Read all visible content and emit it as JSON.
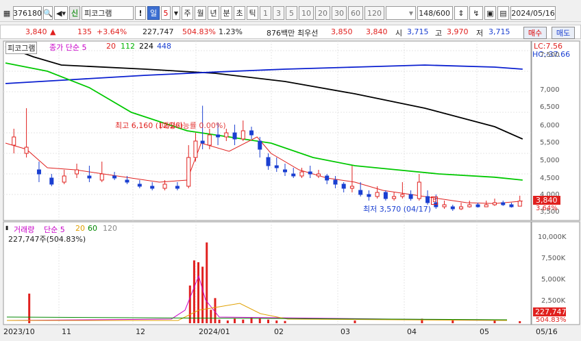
{
  "toolbar": {
    "code": "376180",
    "search_icon": "search-icon",
    "sound_icon": "speaker-icon",
    "stock_badge": "신",
    "stock_name": "피코그램",
    "alert": "!",
    "period_selected": "일",
    "period_count": "5",
    "periods": [
      "주",
      "월",
      "년",
      "분",
      "초",
      "틱"
    ],
    "intervals": [
      "1",
      "3",
      "5",
      "10",
      "20",
      "30",
      "60",
      "120"
    ],
    "count_display": "148/600",
    "date": "2024/05/16"
  },
  "quote": {
    "price": "3,840",
    "arrow": "▲",
    "change": "135",
    "change_pct": "+3.64%",
    "volume": "227,747",
    "volume_pct": "504.83%",
    "turnover": "1.23%",
    "amount": "876백만",
    "broker": "최우선",
    "ask": "3,850",
    "bid": "3,840",
    "open_label": "시",
    "open": "3,715",
    "high_label": "고",
    "high": "3,970",
    "low_label": "저",
    "low": "3,715",
    "buy_button": "매수",
    "sell_button": "매도"
  },
  "price_panel": {
    "name_label": "피코그램",
    "ma_title": "종가 단순 5",
    "ma_periods": [
      "20",
      "112",
      "224",
      "448"
    ],
    "lc": "LC:7.56",
    "hc": "HC:-37.66",
    "y_ticks": [
      "7,500",
      "7,000",
      "6,500",
      "6,000",
      "5,500",
      "5,000",
      "4,500",
      "4,000",
      "3,500"
    ],
    "current_tag": "3,840",
    "current_pct": "3.64%",
    "high_note": "최고 6,160 (12/26)",
    "overlap_note": "(매칭가능률 0.00%)",
    "low_note": "최저 3,570 (04/17)",
    "b_marker": "B"
  },
  "volume_panel": {
    "title": "거래량",
    "ma_title": "단순 5",
    "ma_periods": [
      "20",
      "60",
      "120"
    ],
    "summary": "227,747주(504.83%)",
    "y_ticks": [
      "10,000K",
      "7,500K",
      "5,000K",
      "2,500K"
    ],
    "current_tag": "227,747",
    "current_pct": "504.83%"
  },
  "x_axis": [
    "2023/10",
    "11",
    "12",
    "2024/01",
    "02",
    "03",
    "04",
    "05",
    "05/16"
  ],
  "colors": {
    "up": "#e0201e",
    "down": "#1a3fd1",
    "ma5": "#e0201e",
    "ma20": "#00c800",
    "ma112": "#0a1fd0",
    "ma224": "#000000",
    "vol_ma5": "#c800c8",
    "vol_ma20": "#e0a000",
    "vol_ma60": "#008800",
    "vol_ma120": "#888888"
  },
  "chart_data": {
    "type": "candlestick",
    "ylim": [
      3400,
      7700
    ],
    "ma_long": [
      [
        0,
        7600
      ],
      [
        40,
        7350
      ],
      [
        80,
        7150
      ],
      [
        200,
        7050
      ],
      [
        300,
        6950
      ],
      [
        400,
        6750
      ],
      [
        500,
        6450
      ],
      [
        600,
        6100
      ],
      [
        700,
        5650
      ],
      [
        740,
        5350
      ]
    ],
    "ma_blue": [
      [
        0,
        6700
      ],
      [
        100,
        6800
      ],
      [
        200,
        6900
      ],
      [
        300,
        6980
      ],
      [
        400,
        7050
      ],
      [
        500,
        7100
      ],
      [
        600,
        7150
      ],
      [
        700,
        7100
      ],
      [
        740,
        7050
      ]
    ],
    "ma_green": [
      [
        0,
        7200
      ],
      [
        60,
        7000
      ],
      [
        120,
        6600
      ],
      [
        180,
        6000
      ],
      [
        260,
        5550
      ],
      [
        320,
        5400
      ],
      [
        380,
        5250
      ],
      [
        440,
        4900
      ],
      [
        500,
        4700
      ],
      [
        560,
        4600
      ],
      [
        620,
        4500
      ],
      [
        700,
        4420
      ],
      [
        740,
        4350
      ]
    ],
    "ma_red": [
      [
        0,
        5250
      ],
      [
        30,
        5100
      ],
      [
        60,
        4650
      ],
      [
        100,
        4600
      ],
      [
        160,
        4450
      ],
      [
        220,
        4300
      ],
      [
        260,
        4350
      ],
      [
        280,
        5250
      ],
      [
        320,
        5050
      ],
      [
        360,
        5400
      ],
      [
        380,
        5000
      ],
      [
        420,
        4600
      ],
      [
        460,
        4400
      ],
      [
        500,
        4300
      ],
      [
        540,
        4100
      ],
      [
        580,
        4000
      ],
      [
        620,
        3900
      ],
      [
        660,
        3800
      ],
      [
        700,
        3780
      ],
      [
        740,
        3840
      ]
    ],
    "candles": [
      [
        12,
        5200,
        5400,
        5000,
        5600,
        4800
      ],
      [
        30,
        5000,
        5150,
        4900,
        6100,
        4700
      ],
      [
        48,
        4600,
        4500,
        4300,
        4800,
        4200
      ],
      [
        66,
        4400,
        4250,
        4200,
        4500,
        4150
      ],
      [
        84,
        4300,
        4450,
        4250,
        4600,
        4200
      ],
      [
        102,
        4500,
        4600,
        4400,
        4750,
        4350
      ],
      [
        120,
        4450,
        4400,
        4300,
        4700,
        4250
      ],
      [
        138,
        4350,
        4500,
        4300,
        4800,
        4200
      ],
      [
        156,
        4450,
        4400,
        4350,
        4550,
        4300
      ],
      [
        174,
        4350,
        4300,
        4250,
        4450,
        4200
      ],
      [
        192,
        4250,
        4200,
        4150,
        4350,
        4100
      ],
      [
        210,
        4200,
        4150,
        4100,
        4300,
        4050
      ],
      [
        228,
        4150,
        4250,
        4100,
        4350,
        4050
      ],
      [
        246,
        4200,
        4150,
        4100,
        4300,
        4050
      ],
      [
        262,
        4200,
        4900,
        4150,
        5200,
        4100
      ],
      [
        272,
        4900,
        5300,
        4800,
        5500,
        4700
      ],
      [
        282,
        5300,
        5250,
        5100,
        6160,
        5000
      ],
      [
        292,
        5200,
        5450,
        5100,
        5600,
        5000
      ],
      [
        304,
        5450,
        5400,
        5200,
        5750,
        5100
      ],
      [
        316,
        5400,
        5500,
        5300,
        5600,
        5200
      ],
      [
        328,
        5500,
        5350,
        5200,
        5700,
        5100
      ],
      [
        340,
        5350,
        5550,
        5300,
        5800,
        5200
      ],
      [
        352,
        5550,
        5450,
        5350,
        5650,
        5300
      ],
      [
        364,
        5300,
        5100,
        4900,
        5400,
        4800
      ],
      [
        376,
        4900,
        4700,
        4600,
        5000,
        4500
      ],
      [
        388,
        4700,
        4650,
        4550,
        4900,
        4450
      ],
      [
        400,
        4600,
        4550,
        4450,
        4750,
        4400
      ],
      [
        412,
        4500,
        4450,
        4400,
        4650,
        4350
      ],
      [
        424,
        4450,
        4550,
        4400,
        4650,
        4350
      ],
      [
        436,
        4550,
        4500,
        4400,
        4700,
        4350
      ],
      [
        448,
        4450,
        4500,
        4400,
        4600,
        4350
      ],
      [
        460,
        4450,
        4350,
        4250,
        4500,
        4200
      ],
      [
        472,
        4350,
        4250,
        4150,
        4450,
        4100
      ],
      [
        484,
        4250,
        4150,
        4050,
        4300,
        4000
      ],
      [
        496,
        4150,
        4200,
        4050,
        4700,
        4000
      ],
      [
        508,
        4100,
        4000,
        3950,
        4300,
        3900
      ],
      [
        520,
        4000,
        3950,
        3850,
        4100,
        3800
      ],
      [
        532,
        3950,
        4050,
        3900,
        4200,
        3850
      ],
      [
        544,
        4050,
        3900,
        3850,
        4100,
        3800
      ],
      [
        556,
        3900,
        3950,
        3850,
        4050,
        3800
      ],
      [
        568,
        3950,
        4000,
        3900,
        4300,
        3850
      ],
      [
        580,
        4000,
        3900,
        3850,
        4100,
        3800
      ],
      [
        592,
        3900,
        4300,
        3850,
        4500,
        3800
      ],
      [
        604,
        3950,
        3800,
        3750,
        4100,
        3700
      ],
      [
        616,
        3800,
        3700,
        3650,
        4000,
        3570
      ],
      [
        628,
        3700,
        3750,
        3650,
        3850,
        3600
      ],
      [
        640,
        3700,
        3650,
        3600,
        3750,
        3570
      ],
      [
        652,
        3650,
        3700,
        3620,
        3800,
        3600
      ],
      [
        664,
        3700,
        3750,
        3680,
        3850,
        3650
      ],
      [
        676,
        3750,
        3700,
        3680,
        3800,
        3650
      ],
      [
        688,
        3700,
        3750,
        3700,
        3850,
        3650
      ],
      [
        700,
        3750,
        3800,
        3720,
        3900,
        3700
      ],
      [
        712,
        3800,
        3750,
        3720,
        3850,
        3700
      ],
      [
        724,
        3750,
        3700,
        3680,
        3800,
        3650
      ],
      [
        736,
        3715,
        3840,
        3715,
        3970,
        3715
      ]
    ],
    "volume_bars": [
      [
        34,
        3300
      ],
      [
        264,
        4200
      ],
      [
        270,
        7000
      ],
      [
        276,
        6800
      ],
      [
        282,
        6300
      ],
      [
        288,
        9000
      ],
      [
        294,
        1500
      ],
      [
        300,
        2800
      ],
      [
        306,
        400
      ],
      [
        318,
        300
      ],
      [
        328,
        500
      ],
      [
        340,
        400
      ],
      [
        352,
        600
      ],
      [
        364,
        500
      ],
      [
        376,
        400
      ],
      [
        388,
        300
      ],
      [
        400,
        250
      ],
      [
        500,
        300
      ],
      [
        596,
        500
      ],
      [
        640,
        350
      ],
      [
        700,
        300
      ],
      [
        736,
        227
      ]
    ]
  }
}
